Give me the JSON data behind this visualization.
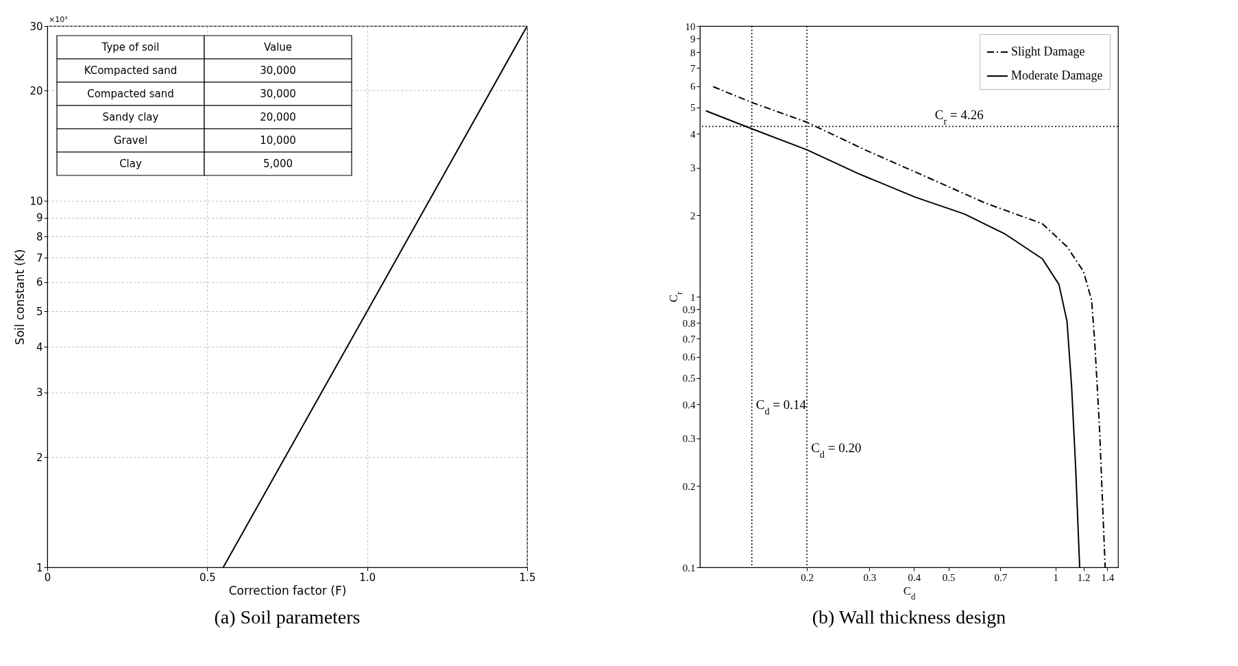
{
  "chart_data": [
    {
      "type": "line",
      "title": "(a) Soil parameters",
      "xlabel": "Correction factor (F)",
      "ylabel": "Soil constant (K)",
      "x": [
        0.55,
        1.0,
        1.5
      ],
      "series": [
        {
          "color": "#000000",
          "values": [
            1,
            5,
            30
          ]
        }
      ],
      "xlim": [
        0,
        1.5
      ],
      "xticks": [
        0,
        0.5,
        {
          "value": 1,
          "label": "1.0"
        },
        1.5
      ],
      "ylim": [
        1,
        30
      ],
      "yticks": [
        1,
        2,
        3,
        4,
        5,
        6,
        7,
        8,
        9,
        10,
        20,
        30
      ],
      "log": "y",
      "grid": true,
      "legend": false,
      "annotations": [
        "×10³",
        "Type of soil",
        "Value",
        "KCompacted sand",
        "30,000",
        "Compacted sand",
        "30,000",
        "Sandy clay",
        "20,000",
        "Gravel",
        "10,000",
        "Clay",
        "5,000"
      ]
    },
    {
      "type": "line",
      "title": "(b) Wall thickness design",
      "xlabel": "C$_{d}$",
      "ylabel": "C$_{r}$",
      "series": [
        {
          "name": "Slight Damage",
          "color": "#000000",
          "line_style": "dashdot",
          "x": [
            0.109,
            0.14,
            0.2,
            0.294,
            0.426,
            0.634,
            0.919,
            1.078,
            1.199,
            1.264,
            1.29,
            1.33,
            1.38
          ],
          "values": [
            5.97,
            5.22,
            4.41,
            3.47,
            2.8,
            2.22,
            1.86,
            1.53,
            1.24,
            0.97,
            0.68,
            0.33,
            0.1
          ]
        },
        {
          "name": "Moderate Damage",
          "color": "#000000",
          "line_style": "solid",
          "x": [
            0.104,
            0.14,
            0.2,
            0.279,
            0.404,
            0.555,
            0.724,
            0.919,
            1.023,
            1.078,
            1.11,
            1.14,
            1.17
          ],
          "values": [
            4.86,
            4.17,
            3.49,
            2.85,
            2.33,
            2.02,
            1.7,
            1.38,
            1.11,
            0.81,
            0.47,
            0.233,
            0.1
          ]
        }
      ],
      "xlim": [
        0.1,
        1.5
      ],
      "xticks": [
        0.2,
        0.3,
        0.4,
        0.5,
        0.7,
        1,
        1.2,
        1.4
      ],
      "ylim": [
        0.1,
        10
      ],
      "yticks": [
        0.1,
        0.2,
        0.3,
        0.4,
        0.5,
        0.6,
        0.7,
        0.8,
        0.9,
        1,
        2,
        3,
        4,
        5,
        6,
        7,
        8,
        9,
        10
      ],
      "log": "xy",
      "legend": "top right",
      "ref_lines": [
        {
          "axis": "x",
          "value": 0.14,
          "label": "C$_{d}$ = 0.14",
          "line_style": "dotted"
        },
        {
          "axis": "x",
          "value": 0.2,
          "label": "C$_{d}$ = 0.20",
          "line_style": "dotted"
        },
        {
          "axis": "y",
          "value": 4.26,
          "label": "C$_{r}$ = 4.26",
          "line_style": "dotted"
        }
      ]
    }
  ]
}
